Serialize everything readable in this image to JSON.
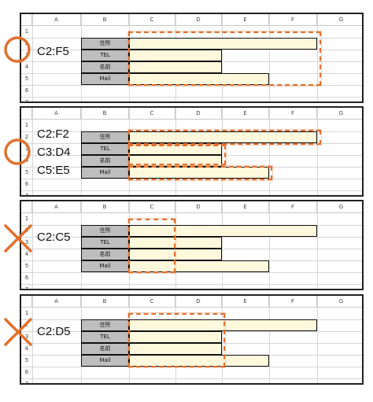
{
  "columns": [
    "A",
    "B",
    "C",
    "D",
    "E",
    "F",
    "G"
  ],
  "rows": [
    "1",
    "2",
    "3",
    "4",
    "5",
    "6",
    "7"
  ],
  "field_labels": [
    "住所",
    "TEL",
    "名前",
    "Mail"
  ],
  "accent_color": "#e0712f",
  "panels": [
    {
      "ranges": [
        "C2:F5"
      ],
      "mark": "circle-icon",
      "verdict": "correct"
    },
    {
      "ranges": [
        "C2:F2",
        "C3:D4",
        "C5:E5"
      ],
      "mark": "circle-icon",
      "verdict": "correct"
    },
    {
      "ranges": [
        "C2:C5"
      ],
      "mark": "cross-icon",
      "verdict": "incorrect"
    },
    {
      "ranges": [
        "C2:D5"
      ],
      "mark": "cross-icon",
      "verdict": "incorrect"
    }
  ]
}
